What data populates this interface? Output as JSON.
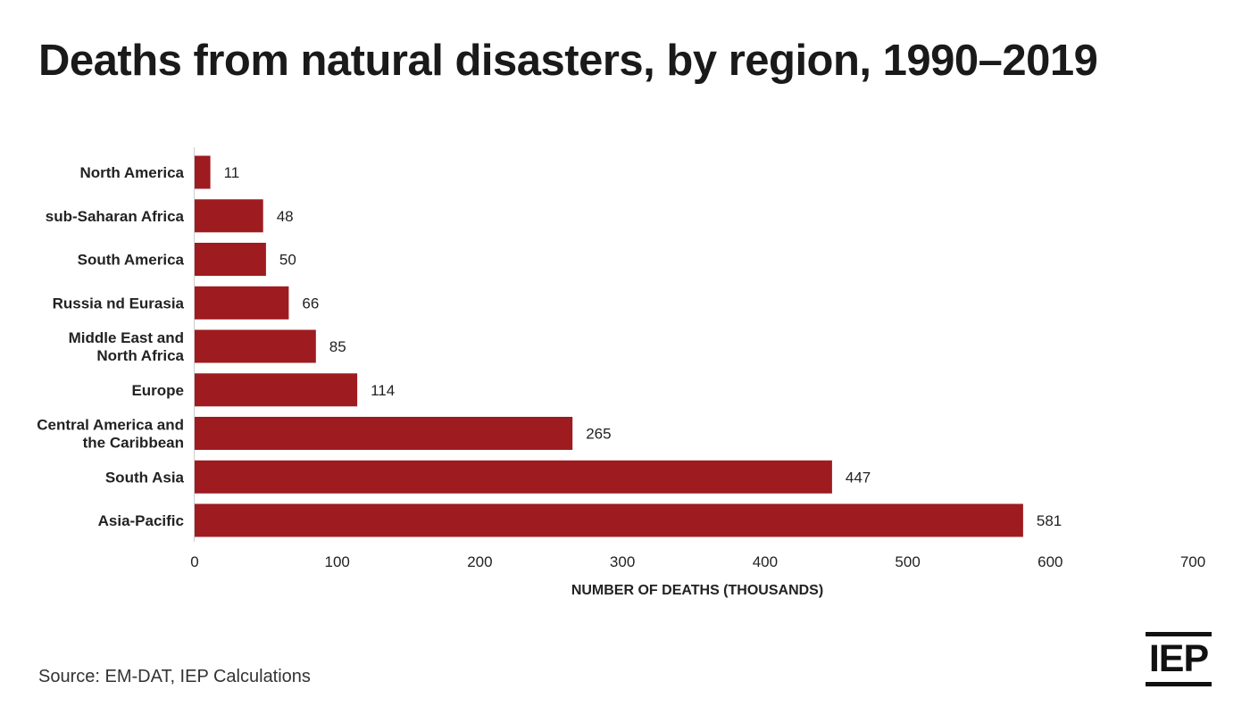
{
  "title": "Deaths from natural disasters, by region, 1990–2019",
  "source": "Source: EM-DAT, IEP Calculations",
  "logo_text": "IEP",
  "colors": {
    "bar": "#9e1b20",
    "text": "#222222",
    "axis": "#cccccc"
  },
  "chart_data": {
    "type": "bar",
    "orientation": "horizontal",
    "categories": [
      [
        "North America"
      ],
      [
        "sub-Saharan Africa"
      ],
      [
        "South America"
      ],
      [
        "Russia nd Eurasia"
      ],
      [
        "Middle East and",
        "North Africa"
      ],
      [
        "Europe"
      ],
      [
        "Central America and",
        "the Caribbean"
      ],
      [
        "South Asia"
      ],
      [
        "Asia-Pacific"
      ]
    ],
    "values": [
      11,
      48,
      50,
      66,
      85,
      114,
      265,
      447,
      581
    ],
    "xlabel": "NUMBER OF DEATHS (THOUSANDS)",
    "ylabel": "",
    "xlim": [
      0,
      700
    ],
    "xticks": [
      0,
      100,
      200,
      300,
      400,
      500,
      600,
      700
    ],
    "grid": false,
    "legend": "none"
  }
}
